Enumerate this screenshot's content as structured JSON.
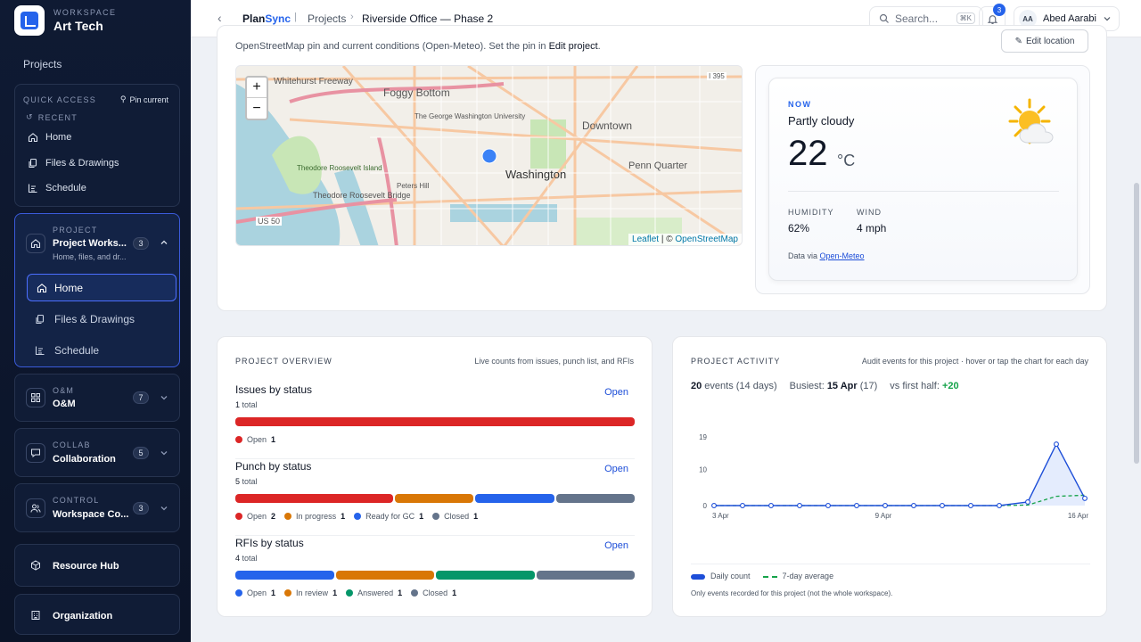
{
  "workspace": {
    "kicker": "WORKSPACE",
    "name": "Art Tech"
  },
  "sidebar": {
    "projects_label": "Projects",
    "quick_access": {
      "label": "QUICK ACCESS",
      "pin_label": "Pin current",
      "recent_label": "RECENT",
      "items": [
        {
          "label": "Home",
          "icon": "home-icon"
        },
        {
          "label": "Files & Drawings",
          "icon": "files-icon"
        },
        {
          "label": "Schedule",
          "icon": "schedule-icon"
        }
      ]
    },
    "project": {
      "kicker": "PROJECT",
      "title": "Project Works...",
      "subtitle": "Home, files, and dr...",
      "badge": "3",
      "items": [
        {
          "label": "Home",
          "active": true
        },
        {
          "label": "Files & Drawings"
        },
        {
          "label": "Schedule"
        }
      ]
    },
    "sections": [
      {
        "kicker": "O&M",
        "title": "O&M",
        "badge": "7",
        "icon": "grid-icon"
      },
      {
        "kicker": "COLLAB",
        "title": "Collaboration",
        "badge": "5",
        "icon": "chat-icon"
      },
      {
        "kicker": "CONTROL",
        "title": "Workspace Co...",
        "badge": "3",
        "icon": "users-icon"
      }
    ],
    "resource_hub": "Resource Hub",
    "organization": "Organization"
  },
  "topbar": {
    "brand_a": "Plan",
    "brand_b": "Sync",
    "crumbs": [
      "Projects",
      "Riverside Office — Phase 2"
    ],
    "search_placeholder": "Search...",
    "search_kbd": "⌘K",
    "notifications": "3",
    "user_initials": "AA",
    "user_name": "Abed Aarabi"
  },
  "location": {
    "desc_prefix": "OpenStreetMap pin and current conditions (Open-Meteo). Set the pin in ",
    "desc_link": "Edit project",
    "desc_suffix": ".",
    "edit_button": "Edit location",
    "map": {
      "zoom_in": "+",
      "zoom_out": "−",
      "attrib_leaflet": "Leaflet",
      "attrib_sep": " | © ",
      "attrib_osm": "OpenStreetMap",
      "labels": [
        "Whitehurst Freeway",
        "Foggy Bottom",
        "The George Washington University",
        "Downtown",
        "Washington",
        "Penn Quarter",
        "Theodore Roosevelt Island",
        "Theodore Roosevelt Bridge",
        "Peters Hill",
        "US 50",
        "I 395"
      ]
    },
    "weather": {
      "now": "NOW",
      "condition": "Partly cloudy",
      "temp": "22",
      "unit": "°C",
      "humidity_label": "HUMIDITY",
      "humidity": "62%",
      "wind_label": "WIND",
      "wind": "4 mph",
      "via_prefix": "Data via ",
      "via_link": "Open-Meteo"
    }
  },
  "overview": {
    "kicker": "PROJECT OVERVIEW",
    "note": "Live counts from issues, punch list, and RFIs",
    "open_label": "Open",
    "groups": [
      {
        "title": "Issues by status",
        "total": "1",
        "total_suffix": " total",
        "segments": [
          {
            "label": "Open",
            "count": 1,
            "color": "#dc2626"
          }
        ]
      },
      {
        "title": "Punch by status",
        "total": "5",
        "total_suffix": " total",
        "segments": [
          {
            "label": "Open",
            "count": 2,
            "color": "#dc2626"
          },
          {
            "label": "In progress",
            "count": 1,
            "color": "#d97706"
          },
          {
            "label": "Ready for GC",
            "count": 1,
            "color": "#2563eb"
          },
          {
            "label": "Closed",
            "count": 1,
            "color": "#64748b"
          }
        ]
      },
      {
        "title": "RFIs by status",
        "total": "4",
        "total_suffix": " total",
        "segments": [
          {
            "label": "Open",
            "count": 1,
            "color": "#2563eb"
          },
          {
            "label": "In review",
            "count": 1,
            "color": "#d97706"
          },
          {
            "label": "Answered",
            "count": 1,
            "color": "#059669"
          },
          {
            "label": "Closed",
            "count": 1,
            "color": "#64748b"
          }
        ]
      }
    ]
  },
  "activity": {
    "kicker": "PROJECT ACTIVITY",
    "note": "Audit events for this project · hover or tap the chart for each day",
    "events_count": "20",
    "events_suffix": " events (14 days)",
    "busiest_label": "Busiest: ",
    "busiest_day": "15 Apr",
    "busiest_count": " (17)",
    "vs_label": "vs first half: ",
    "vs_value": "+20",
    "legend_daily": "Daily count",
    "legend_avg": "7-day average",
    "footnote": "Only events recorded for this project (not the whole workspace)."
  },
  "chart_data": {
    "type": "line",
    "x": [
      "3 Apr",
      "4 Apr",
      "5 Apr",
      "6 Apr",
      "7 Apr",
      "8 Apr",
      "9 Apr",
      "10 Apr",
      "11 Apr",
      "12 Apr",
      "13 Apr",
      "14 Apr",
      "15 Apr",
      "16 Apr"
    ],
    "x_tick_labels": [
      "3 Apr",
      "9 Apr",
      "16 Apr"
    ],
    "y_ticks": [
      0,
      10,
      19
    ],
    "ylim": [
      0,
      19
    ],
    "series": [
      {
        "name": "Daily count",
        "values": [
          0,
          0,
          0,
          0,
          0,
          0,
          0,
          0,
          0,
          0,
          0,
          1,
          17,
          2
        ],
        "color": "#1d4ed8"
      },
      {
        "name": "7-day average",
        "values": [
          0,
          0,
          0,
          0,
          0,
          0,
          0,
          0,
          0,
          0,
          0,
          0.14,
          2.57,
          2.86
        ],
        "color": "#16a34a",
        "dashed": true
      }
    ],
    "grid": false,
    "legend": "bottom-left"
  }
}
